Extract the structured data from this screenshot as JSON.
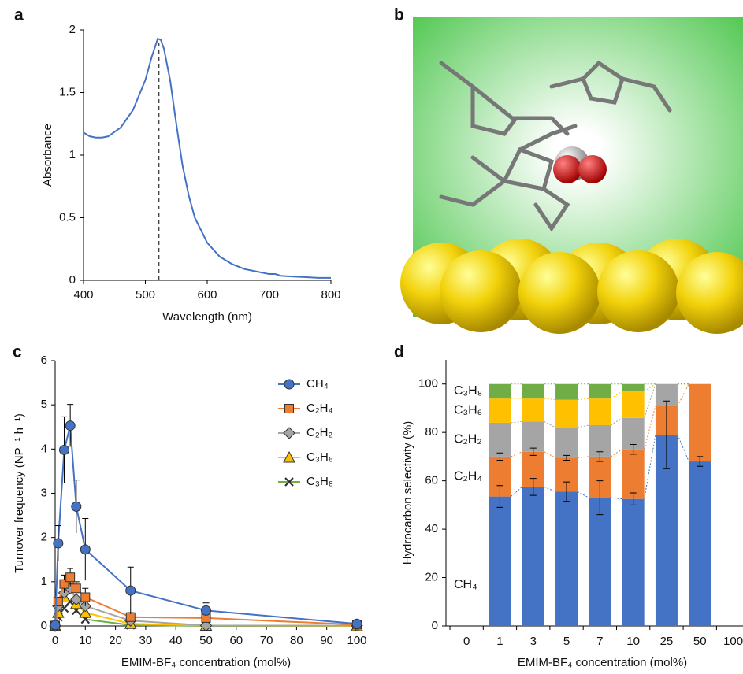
{
  "chart_data": [
    {
      "type": "line",
      "label": "a",
      "xlabel": "Wavelength (nm)",
      "ylabel": "Absorbance",
      "color": "#4472c4",
      "x": [
        400,
        410,
        420,
        430,
        440,
        460,
        480,
        500,
        510,
        520,
        525,
        530,
        540,
        550,
        560,
        570,
        580,
        600,
        620,
        640,
        660,
        680,
        700,
        710,
        720,
        740,
        760,
        780,
        800
      ],
      "values": [
        1.18,
        1.15,
        1.14,
        1.14,
        1.15,
        1.22,
        1.36,
        1.6,
        1.78,
        1.93,
        1.92,
        1.85,
        1.6,
        1.25,
        0.92,
        0.68,
        0.5,
        0.3,
        0.19,
        0.13,
        0.09,
        0.07,
        0.05,
        0.05,
        0.035,
        0.03,
        0.025,
        0.02,
        0.02
      ],
      "vline": 522,
      "xlim": [
        400,
        800
      ],
      "xticks": [
        400,
        500,
        600,
        700,
        800
      ],
      "ylim": [
        0,
        2
      ],
      "yticks": [
        0,
        0.5,
        1,
        1.5,
        2
      ]
    },
    {
      "type": "line",
      "label": "c",
      "xlabel": "EMIM-BF₄ concentration (mol%)",
      "ylabel": "Turnover frequency (NP⁻¹ h⁻¹)",
      "legend": "upper right",
      "x": [
        0,
        1,
        3,
        5,
        7,
        10,
        25,
        50,
        100
      ],
      "series": [
        {
          "name": "CH₄",
          "color": "#4472c4",
          "marker": "circle",
          "values": [
            0.02,
            1.87,
            3.98,
            4.53,
            2.7,
            1.73,
            0.8,
            0.35,
            0.05
          ],
          "errors": [
            0.01,
            0.4,
            0.75,
            0.48,
            0.6,
            0.7,
            0.53,
            0.17,
            0.02
          ]
        },
        {
          "name": "C₂H₄",
          "color": "#ed7d31",
          "marker": "square",
          "values": [
            0.01,
            0.55,
            0.95,
            1.1,
            0.85,
            0.65,
            0.2,
            0.18,
            0.03
          ],
          "errors": [
            0.01,
            0.1,
            0.2,
            0.2,
            0.15,
            0.2,
            0.1,
            0.05,
            0.01
          ]
        },
        {
          "name": "C₂H₂",
          "color": "#a5a5a5",
          "marker": "diamond",
          "values": [
            0,
            0.45,
            0.75,
            0.85,
            0.6,
            0.45,
            0.12,
            0.01,
            0.01
          ]
        },
        {
          "name": "C₃H₆",
          "color": "#ffc000",
          "marker": "triangle",
          "values": [
            0,
            0.3,
            0.65,
            0.95,
            0.5,
            0.3,
            0.05,
            0.01,
            0
          ]
        },
        {
          "name": "C₃H₈",
          "color": "#70ad47",
          "marker": "x",
          "values": [
            0,
            0.2,
            0.4,
            0.55,
            0.35,
            0.15,
            0.02,
            0,
            0
          ]
        }
      ],
      "xlim": [
        0,
        100
      ],
      "xticks": [
        0,
        10,
        20,
        30,
        40,
        50,
        60,
        70,
        80,
        90,
        100
      ],
      "ylim": [
        0,
        6
      ],
      "yticks": [
        0,
        1,
        2,
        3,
        4,
        5,
        6
      ]
    },
    {
      "type": "stacked_bar",
      "label": "d",
      "xlabel": "EMIM-BF₄ concentration (mol%)",
      "ylabel": "Hydrocarbon selectivity (%)",
      "categories": [
        "0",
        "1",
        "3",
        "5",
        "7",
        "10",
        "25",
        "50",
        "100"
      ],
      "series": [
        {
          "name": "CH₄",
          "color": "#4472c4",
          "values": [
            null,
            53.5,
            57.5,
            55.5,
            53,
            52.5,
            79,
            68,
            null
          ],
          "errors": [
            null,
            4.5,
            3.5,
            4,
            7,
            2.5,
            14,
            2,
            null
          ]
        },
        {
          "name": "C₂H₄",
          "color": "#ed7d31",
          "values": [
            null,
            16.5,
            14.5,
            14,
            17,
            20.5,
            12,
            32,
            null
          ],
          "errors": [
            null,
            1.5,
            1.5,
            1,
            2,
            2,
            null,
            null,
            null
          ]
        },
        {
          "name": "C₂H₂",
          "color": "#a5a5a5",
          "values": [
            null,
            14,
            12.5,
            12.5,
            13,
            13,
            9,
            0,
            null
          ]
        },
        {
          "name": "C₃H₆",
          "color": "#ffc000",
          "values": [
            null,
            10,
            9.5,
            11.5,
            11,
            11,
            0,
            0,
            null
          ]
        },
        {
          "name": "C₃H₈",
          "color": "#70ad47",
          "values": [
            null,
            6,
            6,
            6.5,
            6,
            3,
            0,
            0,
            null
          ]
        }
      ],
      "ylim": [
        0,
        110
      ],
      "yticks": [
        0,
        20,
        40,
        60,
        80,
        100
      ]
    }
  ],
  "image_panel": {
    "label": "b"
  }
}
